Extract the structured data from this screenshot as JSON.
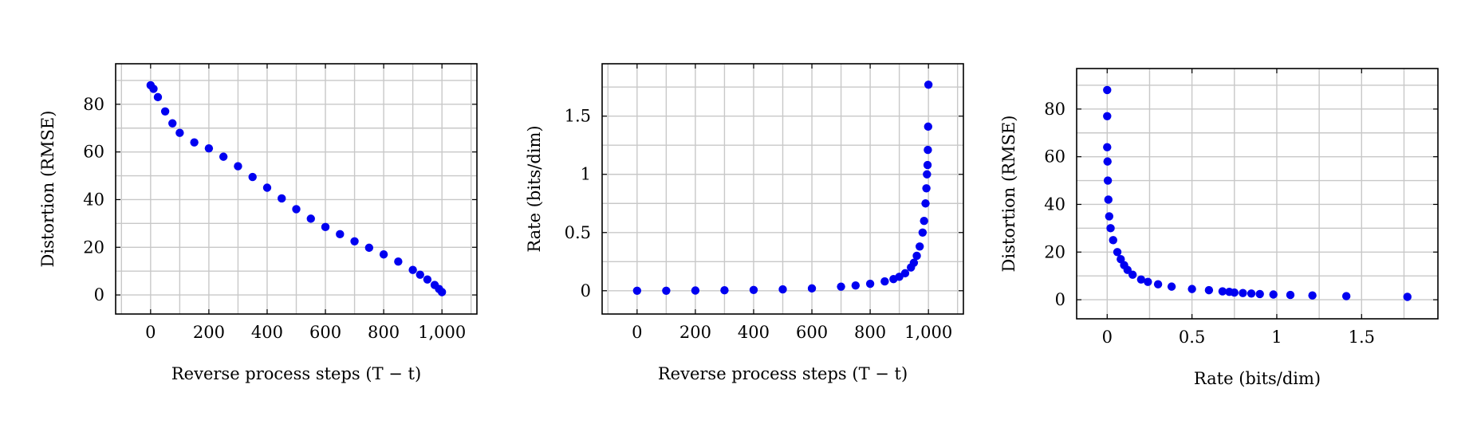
{
  "chart_data": [
    {
      "type": "scatter",
      "xlabel": "Reverse process steps (T − t)",
      "ylabel": "Distortion (RMSE)",
      "xlim": [
        -120,
        1120
      ],
      "ylim": [
        -8,
        97
      ],
      "x_ticks": [
        0,
        200,
        400,
        600,
        800,
        1000
      ],
      "x_tick_labels": [
        "0",
        "200",
        "400",
        "600",
        "800",
        "1,000"
      ],
      "y_ticks": [
        0,
        20,
        40,
        60,
        80
      ],
      "y_tick_labels": [
        "0",
        "20",
        "40",
        "60",
        "80"
      ],
      "grid": true,
      "marker_color": "#0000f0",
      "series": [
        {
          "x": [
            0,
            10,
            25,
            50,
            75,
            100,
            150,
            200,
            250,
            300,
            350,
            400,
            450,
            500,
            550,
            600,
            650,
            700,
            750,
            800,
            850,
            900,
            925,
            950,
            975,
            990,
            1000
          ],
          "y": [
            88,
            86.5,
            83,
            77,
            72,
            68,
            64,
            61.5,
            58,
            54,
            49.5,
            45,
            40.5,
            36,
            32,
            28.5,
            25.5,
            22.5,
            19.8,
            17,
            14,
            10.5,
            8.5,
            6.5,
            4.2,
            2.5,
            1.2
          ]
        }
      ]
    },
    {
      "type": "scatter",
      "xlabel": "Reverse process steps (T − t)",
      "ylabel": "Rate (bits/dim)",
      "xlim": [
        -120,
        1120
      ],
      "ylim": [
        -0.2,
        1.95
      ],
      "x_ticks": [
        0,
        200,
        400,
        600,
        800,
        1000
      ],
      "x_tick_labels": [
        "0",
        "200",
        "400",
        "600",
        "800",
        "1,000"
      ],
      "y_ticks": [
        0,
        0.5,
        1,
        1.5
      ],
      "y_tick_labels": [
        "0",
        "0.5",
        "1",
        "1.5"
      ],
      "grid": true,
      "marker_color": "#0000f0",
      "series": [
        {
          "x": [
            0,
            100,
            200,
            300,
            400,
            500,
            600,
            700,
            750,
            800,
            850,
            880,
            900,
            920,
            940,
            950,
            960,
            970,
            980,
            985,
            990,
            993,
            995,
            997,
            998,
            999,
            1000
          ],
          "y": [
            0,
            0,
            0.002,
            0.004,
            0.007,
            0.012,
            0.02,
            0.035,
            0.045,
            0.06,
            0.08,
            0.1,
            0.12,
            0.15,
            0.2,
            0.24,
            0.3,
            0.38,
            0.5,
            0.6,
            0.75,
            0.88,
            1.0,
            1.08,
            1.21,
            1.41,
            1.77
          ]
        }
      ]
    },
    {
      "type": "scatter",
      "xlabel": "Rate (bits/dim)",
      "ylabel": "Distortion (RMSE)",
      "xlim": [
        -0.18,
        1.95
      ],
      "ylim": [
        -8,
        97
      ],
      "x_ticks": [
        0,
        0.5,
        1,
        1.5
      ],
      "x_tick_labels": [
        "0",
        "0.5",
        "1",
        "1.5"
      ],
      "y_ticks": [
        0,
        20,
        40,
        60,
        80
      ],
      "y_tick_labels": [
        "0",
        "20",
        "40",
        "60",
        "80"
      ],
      "grid": true,
      "marker_color": "#0000f0",
      "series": [
        {
          "x": [
            0,
            0,
            0,
            0.002,
            0.004,
            0.007,
            0.012,
            0.02,
            0.035,
            0.06,
            0.08,
            0.1,
            0.12,
            0.15,
            0.2,
            0.24,
            0.3,
            0.38,
            0.5,
            0.6,
            0.68,
            0.72,
            0.75,
            0.8,
            0.85,
            0.9,
            0.98,
            1.08,
            1.21,
            1.41,
            1.77
          ],
          "y": [
            88,
            77,
            64,
            58,
            50,
            42,
            35,
            30,
            25,
            20,
            17,
            14.5,
            12.5,
            10.5,
            8.5,
            7.5,
            6.5,
            5.5,
            4.5,
            4,
            3.5,
            3.3,
            3,
            2.8,
            2.6,
            2.4,
            2.2,
            2,
            1.8,
            1.5,
            1.2
          ]
        }
      ]
    }
  ]
}
